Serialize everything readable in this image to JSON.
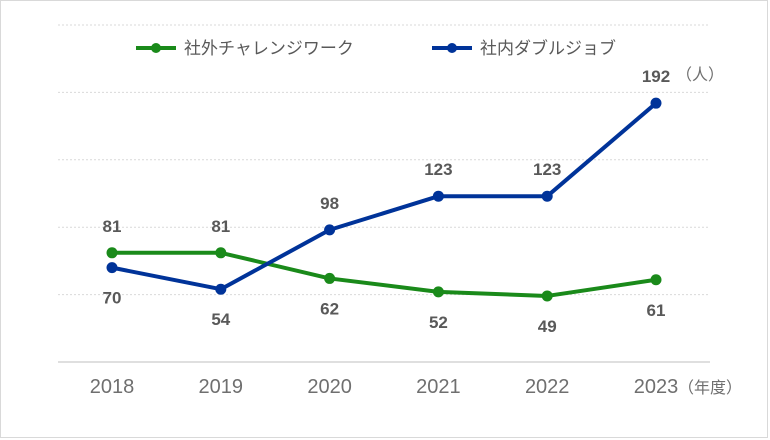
{
  "chart_data": {
    "type": "line",
    "categories": [
      "2018",
      "2019",
      "2020",
      "2021",
      "2022",
      "2023"
    ],
    "series": [
      {
        "name": "社外チャレンジワーク",
        "color": "#1a8a1a",
        "values": [
          81,
          81,
          62,
          52,
          49,
          61
        ]
      },
      {
        "name": "社内ダブルジョブ",
        "color": "#003399",
        "values": [
          70,
          54,
          98,
          123,
          123,
          192
        ]
      }
    ],
    "y_unit": "（人）",
    "x_unit": "（年度）",
    "ylim": [
      0,
      250
    ],
    "grid": true,
    "legend": "top-center"
  }
}
